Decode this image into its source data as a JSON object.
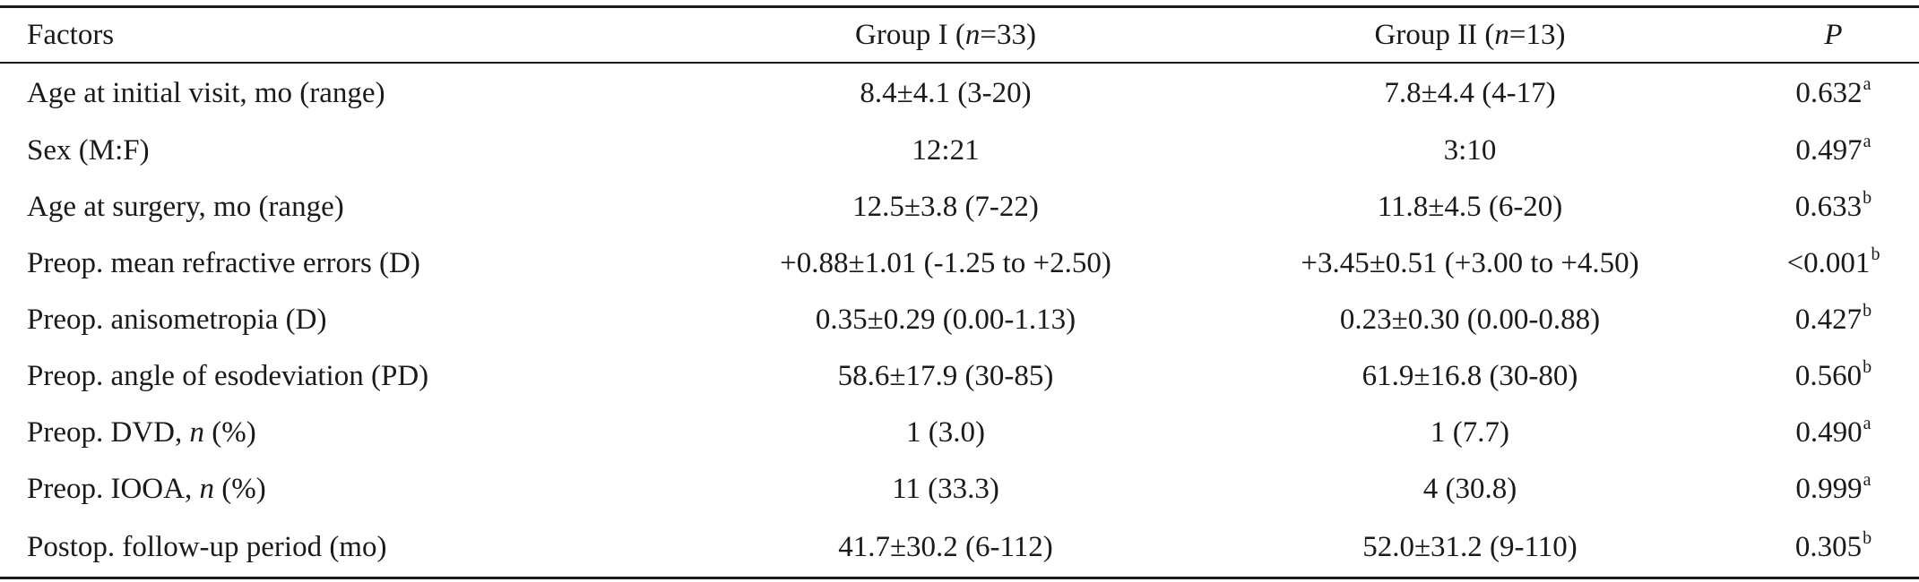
{
  "header": {
    "factors": "Factors",
    "group1_prefix": "Group I (",
    "group1_n": "n",
    "group1_suffix": "=33)",
    "group2_prefix": "Group II (",
    "group2_n": "n",
    "group2_suffix": "=13)",
    "p": "P"
  },
  "rows": [
    {
      "factor_pre": "Age at initial visit, mo (range)",
      "factor_italic": "",
      "factor_post": "",
      "g1": "8.4±4.1 (3-20)",
      "g2": "7.8±4.4 (4-17)",
      "p": "0.632",
      "p_sup": "a"
    },
    {
      "factor_pre": "Sex (M:F)",
      "factor_italic": "",
      "factor_post": "",
      "g1": "12:21",
      "g2": "3:10",
      "p": "0.497",
      "p_sup": "a"
    },
    {
      "factor_pre": "Age at surgery, mo (range)",
      "factor_italic": "",
      "factor_post": "",
      "g1": "12.5±3.8 (7-22)",
      "g2": "11.8±4.5 (6-20)",
      "p": "0.633",
      "p_sup": "b"
    },
    {
      "factor_pre": "Preop. mean refractive errors (D)",
      "factor_italic": "",
      "factor_post": "",
      "g1": "+0.88±1.01 (-1.25 to +2.50)",
      "g2": "+3.45±0.51 (+3.00 to +4.50)",
      "p": "<0.001",
      "p_sup": "b"
    },
    {
      "factor_pre": "Preop. anisometropia (D)",
      "factor_italic": "",
      "factor_post": "",
      "g1": "0.35±0.29 (0.00-1.13)",
      "g2": "0.23±0.30 (0.00-0.88)",
      "p": "0.427",
      "p_sup": "b"
    },
    {
      "factor_pre": "Preop. angle of esodeviation (PD)",
      "factor_italic": "",
      "factor_post": "",
      "g1": "58.6±17.9 (30-85)",
      "g2": "61.9±16.8 (30-80)",
      "p": "0.560",
      "p_sup": "b"
    },
    {
      "factor_pre": "Preop. DVD, ",
      "factor_italic": "n",
      "factor_post": " (%)",
      "g1": "1 (3.0)",
      "g2": "1 (7.7)",
      "p": "0.490",
      "p_sup": "a"
    },
    {
      "factor_pre": "Preop. IOOA, ",
      "factor_italic": "n",
      "factor_post": " (%)",
      "g1": "11 (33.3)",
      "g2": "4 (30.8)",
      "p": "0.999",
      "p_sup": "a"
    },
    {
      "factor_pre": "Postop. follow-up period (mo)",
      "factor_italic": "",
      "factor_post": "",
      "g1": "41.7±30.2 (6-112)",
      "g2": "52.0±31.2 (9-110)",
      "p": "0.305",
      "p_sup": "b"
    }
  ]
}
